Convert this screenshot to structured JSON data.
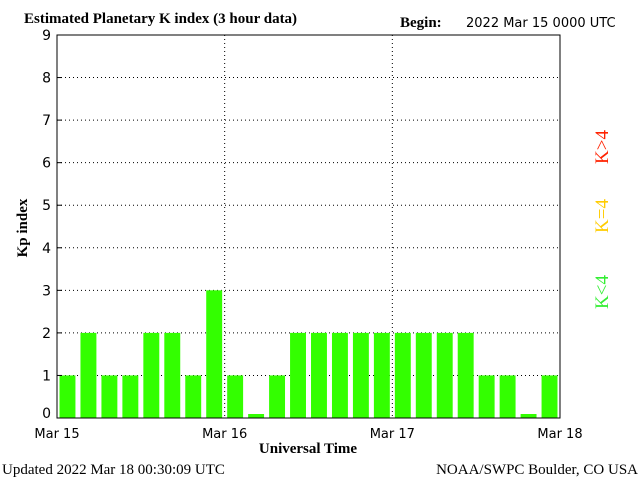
{
  "header": {
    "title": "Estimated Planetary K index (3 hour data)",
    "begin_label": "Begin:",
    "begin_value": "2022 Mar 15 0000 UTC"
  },
  "footer": {
    "updated": "Updated 2022 Mar 18 00:30:09 UTC",
    "credit": "NOAA/SWPC Boulder, CO USA"
  },
  "legend": [
    {
      "text": "K<4",
      "color": "#33ee33"
    },
    {
      "text": "K=4",
      "color": "#ffcc00"
    },
    {
      "text": "K>4",
      "color": "#ff2200"
    }
  ],
  "chart_data": {
    "type": "bar",
    "title": "Estimated Planetary K index (3 hour data)",
    "xlabel": "Universal Time",
    "ylabel": "Kp index",
    "ylim": [
      0,
      9
    ],
    "yticks": [
      0,
      1,
      2,
      3,
      4,
      5,
      6,
      7,
      8,
      9
    ],
    "xticks": [
      "Mar 15",
      "Mar 16",
      "Mar 17",
      "Mar 18"
    ],
    "grid": "dotted",
    "bar_color": "#33ff00",
    "series": [
      {
        "values": [
          1,
          2,
          1,
          1,
          2,
          2,
          1,
          3,
          1,
          0,
          1,
          2,
          2,
          2,
          2,
          2,
          2,
          2,
          2,
          2,
          1,
          1,
          0,
          1
        ]
      }
    ]
  }
}
